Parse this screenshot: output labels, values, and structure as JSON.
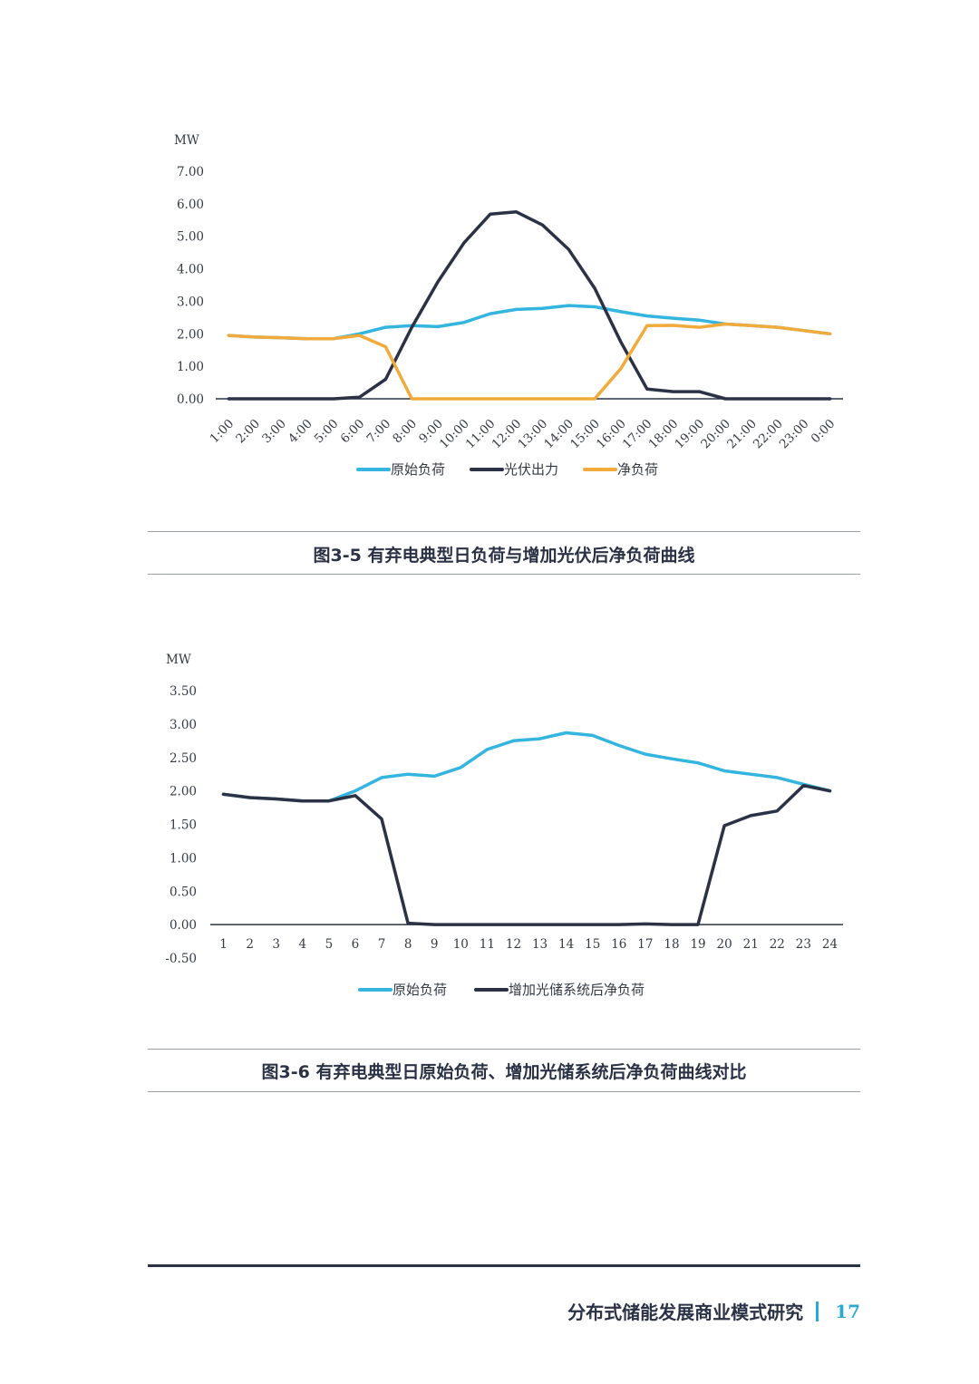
{
  "chart_data": [
    {
      "type": "line",
      "unit_label": "MW",
      "categories": [
        "1:00",
        "2:00",
        "3:00",
        "4:00",
        "5:00",
        "6:00",
        "7:00",
        "8:00",
        "9:00",
        "10:00",
        "11:00",
        "12:00",
        "13:00",
        "14:00",
        "15:00",
        "16:00",
        "17:00",
        "18:00",
        "19:00",
        "20:00",
        "21:00",
        "22:00",
        "23:00",
        "0:00"
      ],
      "yticks": [
        "0.00",
        "1.00",
        "2.00",
        "3.00",
        "4.00",
        "5.00",
        "6.00",
        "7.00"
      ],
      "ylim": [
        0,
        7
      ],
      "x_tick_rotation": -45,
      "legend_position": "bottom",
      "series": [
        {
          "name": "原始负荷",
          "color": "#33b5e0",
          "values": [
            1.95,
            1.9,
            1.88,
            1.85,
            1.85,
            2.0,
            2.2,
            2.25,
            2.22,
            2.35,
            2.62,
            2.75,
            2.78,
            2.87,
            2.83,
            2.68,
            2.55,
            2.48,
            2.42,
            2.3,
            2.25,
            2.2,
            2.1,
            2.0
          ]
        },
        {
          "name": "光伏出力",
          "color": "#2b3245",
          "values": [
            0,
            0,
            0,
            0,
            0,
            0.05,
            0.6,
            2.2,
            3.6,
            4.8,
            5.68,
            5.75,
            5.35,
            4.6,
            3.4,
            1.75,
            0.3,
            0.22,
            0.22,
            0,
            0,
            0,
            0,
            0
          ]
        },
        {
          "name": "净负荷",
          "color": "#f0ab3c",
          "values": [
            1.95,
            1.9,
            1.88,
            1.85,
            1.85,
            1.95,
            1.6,
            0,
            0,
            0,
            0,
            0,
            0,
            0,
            0,
            0.93,
            2.25,
            2.26,
            2.2,
            2.3,
            2.25,
            2.2,
            2.1,
            2.0
          ]
        }
      ]
    },
    {
      "type": "line",
      "unit_label": "MW",
      "categories": [
        "1",
        "2",
        "3",
        "4",
        "5",
        "6",
        "7",
        "8",
        "9",
        "10",
        "11",
        "12",
        "13",
        "14",
        "15",
        "16",
        "17",
        "18",
        "19",
        "20",
        "21",
        "22",
        "23",
        "24"
      ],
      "yticks": [
        "-0.50",
        "0.00",
        "0.50",
        "1.00",
        "1.50",
        "2.00",
        "2.50",
        "3.00",
        "3.50"
      ],
      "ylim": [
        -0.5,
        3.5
      ],
      "legend_position": "bottom",
      "series": [
        {
          "name": "原始负荷",
          "color": "#33b5e0",
          "values": [
            1.95,
            1.9,
            1.88,
            1.85,
            1.85,
            2.0,
            2.2,
            2.25,
            2.22,
            2.35,
            2.62,
            2.75,
            2.78,
            2.87,
            2.83,
            2.68,
            2.55,
            2.48,
            2.42,
            2.3,
            2.25,
            2.2,
            2.1,
            2.0
          ]
        },
        {
          "name": "增加光储系统后净负荷",
          "color": "#2b3245",
          "values": [
            1.95,
            1.9,
            1.88,
            1.85,
            1.85,
            1.93,
            1.58,
            0.02,
            0,
            0,
            0,
            0,
            0,
            0,
            0,
            0,
            0.01,
            0,
            0,
            1.48,
            1.63,
            1.7,
            2.08,
            2.0
          ]
        }
      ]
    }
  ],
  "figure1": {
    "caption": "图3-5  有弃电典型日负荷与增加光伏后净负荷曲线"
  },
  "figure2": {
    "caption": "图3-6  有弃电典型日原始负荷、增加光储系统后净负荷曲线对比"
  },
  "footer": {
    "title": "分布式储能发展商业模式研究",
    "page_number": "17"
  }
}
